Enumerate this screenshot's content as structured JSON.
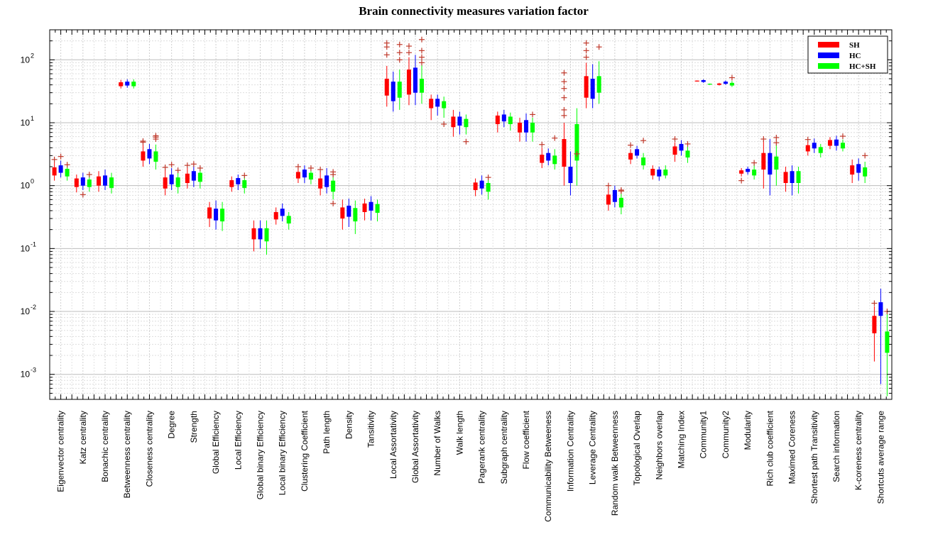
{
  "chart_data": {
    "type": "box",
    "title": "Brain connectivity measures variation factor",
    "yscale": "log",
    "ylim": [
      0.0004,
      300
    ],
    "yticks": [
      {
        "value": 0.001,
        "base": "10",
        "exp": "-3"
      },
      {
        "value": 0.01,
        "base": "10",
        "exp": "-2"
      },
      {
        "value": 0.1,
        "base": "10",
        "exp": "-1"
      },
      {
        "value": 1,
        "base": "10",
        "exp": "0"
      },
      {
        "value": 10,
        "base": "10",
        "exp": "1"
      },
      {
        "value": 100,
        "base": "10",
        "exp": "2"
      }
    ],
    "legend": {
      "position": "top-right",
      "entries": [
        {
          "name": "SH",
          "color": "#ff0000"
        },
        {
          "name": "HC",
          "color": "#0000ff"
        },
        {
          "name": "HC+SH",
          "color": "#00ff00"
        }
      ]
    },
    "outlier_color": "#c0392b",
    "categories": [
      "Eigenvector centrality",
      "Katz centrality",
      "Bonachic centrality",
      "Betweenness centrality",
      "Closeness centrality",
      "Degree",
      "Strength",
      "Global Efficiency",
      "Local Efficiency",
      "Global binary Efficiency",
      "Local binary Efficiency",
      "Clustering Coefficient",
      "Path length",
      "Density",
      "Tansitivity",
      "Local Assortativity",
      "Global Assortativity",
      "Number of Walks",
      "Walk length",
      "Pagerank centrality",
      "Subgraph centrality",
      "Flow coefficient",
      "Communicability Betweeness",
      "Information Centrality",
      "Leverage Centrality",
      "Random walk Betweenness",
      "Topological Overlap",
      "Neighbors overlap",
      "Matching Index",
      "Community1",
      "Community2",
      "Modularity",
      "Rich club coefficient",
      "Maximed Coreness",
      "Shortest path Transitivity",
      "Search information",
      "K-coreness centrality",
      "Shortcuts average range"
    ],
    "series": [
      {
        "name": "SH",
        "boxes": [
          [
            1.2,
            1.45,
            1.65,
            1.95,
            2.4,
            [
              2.6
            ]
          ],
          [
            0.78,
            0.95,
            1.15,
            1.3,
            1.5,
            []
          ],
          [
            0.8,
            1.0,
            1.18,
            1.4,
            1.7,
            []
          ],
          [
            35,
            38,
            41,
            44,
            48,
            []
          ],
          [
            2.0,
            2.5,
            2.9,
            3.5,
            4.5,
            [
              4.9,
              5.1
            ]
          ],
          [
            0.7,
            0.9,
            1.1,
            1.35,
            1.8,
            [
              1.95
            ]
          ],
          [
            0.9,
            1.1,
            1.3,
            1.55,
            1.9,
            [
              2.1
            ]
          ],
          [
            0.22,
            0.3,
            0.37,
            0.45,
            0.55,
            []
          ],
          [
            0.8,
            0.95,
            1.08,
            1.22,
            1.4,
            []
          ],
          [
            0.09,
            0.14,
            0.17,
            0.21,
            0.28,
            []
          ],
          [
            0.24,
            0.29,
            0.33,
            0.38,
            0.45,
            []
          ],
          [
            1.1,
            1.3,
            1.45,
            1.65,
            1.9,
            [
              2.0
            ]
          ],
          [
            0.7,
            0.9,
            1.08,
            1.3,
            1.7,
            [
              1.8
            ]
          ],
          [
            0.2,
            0.3,
            0.37,
            0.45,
            0.6,
            []
          ],
          [
            0.28,
            0.38,
            0.45,
            0.52,
            0.62,
            []
          ],
          [
            18,
            27,
            40,
            50,
            80,
            [
              120,
              160,
              185
            ]
          ],
          [
            19,
            28,
            45,
            70,
            110,
            [
              130,
              165
            ]
          ],
          [
            11,
            17,
            20,
            24,
            28,
            []
          ],
          [
            6,
            8.5,
            10.5,
            12.5,
            16,
            []
          ],
          [
            0.68,
            0.85,
            1.0,
            1.12,
            1.3,
            []
          ],
          [
            7,
            9.5,
            11,
            13,
            15,
            []
          ],
          [
            5,
            7,
            8.5,
            10,
            12,
            []
          ],
          [
            1.9,
            2.3,
            2.7,
            3.1,
            4.0,
            [
              4.5
            ]
          ],
          [
            1.0,
            2.0,
            3.5,
            5.5,
            10,
            [
              13,
              16,
              25,
              35,
              45,
              62
            ]
          ],
          [
            17,
            25,
            38,
            55,
            90,
            [
              110,
              140,
              185
            ]
          ],
          [
            0.4,
            0.5,
            0.6,
            0.72,
            0.9,
            [
              1.0
            ]
          ],
          [
            2.2,
            2.6,
            2.95,
            3.3,
            3.8,
            [
              4.4
            ]
          ],
          [
            1.25,
            1.45,
            1.65,
            1.85,
            2.1,
            []
          ],
          [
            2.4,
            3.1,
            3.7,
            4.2,
            4.9,
            [
              5.5
            ]
          ],
          [
            45,
            45.5,
            46,
            46.5,
            47,
            []
          ],
          [
            39,
            40,
            41,
            42,
            43,
            []
          ],
          [
            1.4,
            1.55,
            1.65,
            1.75,
            1.9,
            [
              1.2
            ]
          ],
          [
            0.9,
            1.8,
            2.4,
            3.3,
            5.2,
            [
              5.5
            ]
          ],
          [
            0.8,
            1.1,
            1.35,
            1.65,
            2.0,
            []
          ],
          [
            3.0,
            3.5,
            4.0,
            4.4,
            5.0,
            [
              5.4
            ]
          ],
          [
            3.8,
            4.3,
            4.8,
            5.3,
            5.9,
            []
          ],
          [
            1.1,
            1.5,
            1.75,
            2.1,
            2.6,
            []
          ],
          [
            0.0016,
            0.0045,
            0.0065,
            0.0085,
            0.012,
            [
              0.0135
            ]
          ]
        ]
      },
      {
        "name": "HC",
        "boxes": [
          [
            1.35,
            1.6,
            1.85,
            2.1,
            2.5,
            [
              2.9
            ]
          ],
          [
            0.85,
            1.0,
            1.2,
            1.35,
            1.6,
            [
              0.72
            ]
          ],
          [
            0.85,
            1.0,
            1.22,
            1.45,
            1.8,
            []
          ],
          [
            36,
            39,
            42,
            45,
            49,
            []
          ],
          [
            2.2,
            2.7,
            3.2,
            3.8,
            4.6,
            []
          ],
          [
            0.85,
            1.05,
            1.28,
            1.5,
            1.9,
            [
              2.15
            ]
          ],
          [
            0.95,
            1.2,
            1.45,
            1.7,
            2.1,
            [
              2.2
            ]
          ],
          [
            0.2,
            0.28,
            0.35,
            0.43,
            0.58,
            []
          ],
          [
            0.85,
            1.05,
            1.18,
            1.32,
            1.5,
            []
          ],
          [
            0.1,
            0.14,
            0.17,
            0.21,
            0.28,
            []
          ],
          [
            0.27,
            0.33,
            0.38,
            0.43,
            0.52,
            []
          ],
          [
            1.1,
            1.35,
            1.55,
            1.8,
            2.1,
            []
          ],
          [
            0.75,
            0.95,
            1.2,
            1.45,
            1.9,
            []
          ],
          [
            0.22,
            0.32,
            0.4,
            0.48,
            0.62,
            []
          ],
          [
            0.28,
            0.4,
            0.48,
            0.55,
            0.68,
            []
          ],
          [
            15,
            22,
            33,
            45,
            65,
            []
          ],
          [
            19,
            30,
            50,
            75,
            120,
            []
          ],
          [
            13,
            18,
            21,
            24,
            28,
            []
          ],
          [
            6.5,
            9,
            11,
            12.5,
            15,
            []
          ],
          [
            0.72,
            0.9,
            1.05,
            1.2,
            1.45,
            []
          ],
          [
            8.5,
            10.5,
            12,
            13.5,
            16,
            []
          ],
          [
            5,
            7,
            9,
            11,
            14,
            []
          ],
          [
            2.1,
            2.5,
            2.9,
            3.3,
            3.9,
            []
          ],
          [
            0.7,
            1.1,
            1.5,
            2.0,
            3.5,
            []
          ],
          [
            17,
            24,
            35,
            50,
            85,
            []
          ],
          [
            0.45,
            0.55,
            0.7,
            0.85,
            1.0,
            []
          ],
          [
            2.7,
            3.0,
            3.4,
            3.8,
            4.3,
            []
          ],
          [
            1.2,
            1.4,
            1.6,
            1.8,
            2.0,
            []
          ],
          [
            3.0,
            3.6,
            4.1,
            4.6,
            5.3,
            []
          ],
          [
            43,
            44.5,
            46,
            47.5,
            49,
            []
          ],
          [
            40,
            41.5,
            43,
            45,
            47,
            []
          ],
          [
            1.5,
            1.65,
            1.75,
            1.85,
            2.0,
            []
          ],
          [
            0.7,
            1.5,
            2.3,
            3.3,
            5.5,
            []
          ],
          [
            0.7,
            1.1,
            1.4,
            1.7,
            2.1,
            []
          ],
          [
            3.3,
            3.9,
            4.3,
            4.8,
            5.6,
            []
          ],
          [
            3.6,
            4.3,
            4.8,
            5.4,
            6.2,
            []
          ],
          [
            1.2,
            1.6,
            1.9,
            2.2,
            2.7,
            []
          ],
          [
            0.0007,
            0.0085,
            0.011,
            0.014,
            0.023,
            []
          ]
        ]
      },
      {
        "name": "HC+SH",
        "boxes": [
          [
            1.2,
            1.4,
            1.6,
            1.85,
            2.2,
            [
              2.15
            ]
          ],
          [
            0.8,
            0.95,
            1.1,
            1.25,
            1.5,
            [
              1.5
            ]
          ],
          [
            0.75,
            0.92,
            1.12,
            1.35,
            1.6,
            []
          ],
          [
            35,
            38,
            42,
            45,
            49,
            []
          ],
          [
            1.8,
            2.4,
            2.9,
            3.5,
            4.5,
            [
              5.9,
              6.2,
              5.5
            ]
          ],
          [
            0.75,
            0.95,
            1.15,
            1.35,
            1.7,
            [
              1.75
            ]
          ],
          [
            0.9,
            1.15,
            1.35,
            1.6,
            1.95,
            [
              1.9
            ]
          ],
          [
            0.19,
            0.27,
            0.35,
            0.43,
            0.55,
            []
          ],
          [
            0.75,
            0.92,
            1.08,
            1.22,
            1.45,
            [
              1.45
            ]
          ],
          [
            0.08,
            0.13,
            0.17,
            0.21,
            0.28,
            []
          ],
          [
            0.2,
            0.25,
            0.29,
            0.33,
            0.38,
            []
          ],
          [
            1.05,
            1.25,
            1.4,
            1.6,
            1.85,
            [
              1.9
            ]
          ],
          [
            0.6,
            0.8,
            1.0,
            1.2,
            1.6,
            [
              0.52,
              1.5,
              1.65
            ]
          ],
          [
            0.17,
            0.27,
            0.35,
            0.44,
            0.58,
            []
          ],
          [
            0.27,
            0.37,
            0.44,
            0.51,
            0.6,
            []
          ],
          [
            16,
            25,
            35,
            45,
            70,
            [
              100,
              130,
              175
            ]
          ],
          [
            20,
            30,
            40,
            50,
            85,
            [
              90,
              110,
              140,
              210
            ]
          ],
          [
            12,
            17,
            19.5,
            22,
            26,
            [
              9.5
            ]
          ],
          [
            6.5,
            8.5,
            10,
            11.5,
            13.5,
            [
              5.0
            ]
          ],
          [
            0.6,
            0.8,
            0.95,
            1.1,
            1.25,
            [
              1.35
            ]
          ],
          [
            7.5,
            9.5,
            11,
            12.5,
            14.5,
            []
          ],
          [
            5,
            7,
            8.5,
            10,
            12,
            [
              13.5
            ]
          ],
          [
            1.8,
            2.2,
            2.6,
            3.0,
            3.8,
            [
              5.7
            ]
          ],
          [
            1.0,
            2.5,
            5,
            9.5,
            17,
            [
              3.2
            ]
          ],
          [
            20,
            30,
            40,
            55,
            95,
            [
              160
            ]
          ],
          [
            0.35,
            0.45,
            0.55,
            0.64,
            0.78,
            [
              0.82,
              0.85
            ]
          ],
          [
            1.8,
            2.1,
            2.45,
            2.8,
            3.3,
            [
              5.2
            ]
          ],
          [
            1.3,
            1.45,
            1.6,
            1.8,
            2.1,
            []
          ],
          [
            2.3,
            2.8,
            3.2,
            3.6,
            4.2,
            [
              4.6
            ]
          ],
          [
            40,
            40.5,
            41,
            41.5,
            42,
            []
          ],
          [
            37,
            39,
            41,
            43,
            46,
            [
              52
            ]
          ],
          [
            1.25,
            1.45,
            1.6,
            1.8,
            2.2,
            [
              2.3
            ]
          ],
          [
            1.0,
            1.8,
            2.3,
            2.9,
            4.5,
            [
              4.8,
              5.8
            ]
          ],
          [
            0.75,
            1.1,
            1.35,
            1.7,
            2.0,
            []
          ],
          [
            2.8,
            3.3,
            3.7,
            4.1,
            4.6,
            []
          ],
          [
            3.5,
            3.9,
            4.3,
            4.8,
            5.4,
            [
              6.1
            ]
          ],
          [
            1.1,
            1.4,
            1.65,
            1.95,
            2.4,
            [
              3.0
            ]
          ],
          [
            0.00045,
            0.0022,
            0.0035,
            0.0048,
            0.0095,
            [
              0.01
            ]
          ]
        ]
      }
    ]
  }
}
